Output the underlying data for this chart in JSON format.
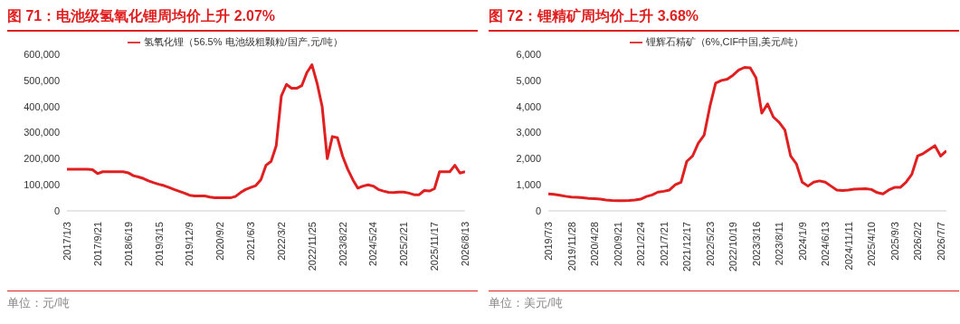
{
  "chart_data": [
    {
      "type": "line",
      "title": "图 71：电池级氢氧化锂周均价上升 2.07%",
      "categories": [
        "2017/1/3",
        null,
        null,
        null,
        null,
        null,
        "2017/9/21",
        null,
        null,
        null,
        null,
        null,
        "2018/6/19",
        null,
        null,
        null,
        null,
        null,
        "2019/3/15",
        null,
        null,
        null,
        null,
        null,
        "2019/12/9",
        null,
        null,
        null,
        null,
        null,
        "2020/9/2",
        null,
        null,
        null,
        null,
        null,
        "2021/6/3",
        null,
        null,
        null,
        null,
        null,
        "2022/3/2",
        null,
        null,
        null,
        null,
        null,
        "2022/11/25",
        null,
        null,
        null,
        null,
        null,
        "2023/8/22",
        null,
        null,
        null,
        null,
        null,
        "2024/5/24",
        null,
        null,
        null,
        null,
        null,
        "2025/2/21",
        null,
        null,
        null,
        null,
        null,
        "2025/11/17",
        null,
        null,
        null,
        null,
        null,
        "2026/8/13"
      ],
      "series": [
        {
          "name": "氢氧化锂（56.5% 电池级粗颗粒/国产,元/吨）",
          "color": "#e02020",
          "values": [
            160000,
            160000,
            160000,
            160000,
            160000,
            158000,
            143000,
            150000,
            150000,
            150000,
            150000,
            150000,
            146000,
            135000,
            130000,
            124000,
            115000,
            108000,
            102000,
            97000,
            90000,
            82000,
            75000,
            68000,
            60000,
            57000,
            57000,
            57000,
            53000,
            50000,
            50000,
            50000,
            50000,
            55000,
            70000,
            82000,
            90000,
            97000,
            120000,
            175000,
            190000,
            250000,
            440000,
            485000,
            470000,
            470000,
            480000,
            530000,
            560000,
            490000,
            400000,
            200000,
            285000,
            280000,
            210000,
            160000,
            120000,
            87000,
            95000,
            100000,
            95000,
            82000,
            76000,
            71000,
            70000,
            72000,
            72000,
            68000,
            62000,
            62000,
            78000,
            76000,
            85000,
            150000,
            150000,
            150000,
            175000,
            145000,
            150000
          ]
        }
      ],
      "ylim": [
        0,
        600000
      ],
      "yticks": [
        0,
        {
          "value": 100000,
          "label": "100,000"
        },
        {
          "value": 200000,
          "label": "200,000"
        },
        {
          "value": 300000,
          "label": "300,000"
        },
        {
          "value": 400000,
          "label": "400,000"
        },
        {
          "value": 500000,
          "label": "500,000"
        },
        {
          "value": 600000,
          "label": "600,000"
        }
      ],
      "grid": false,
      "legend": "top",
      "annotations": [
        "单位：元/吨"
      ]
    },
    {
      "type": "line",
      "title": "图 72：锂精矿周均价上升 3.68%",
      "categories": [
        "2019/7/3",
        null,
        null,
        null,
        "2019/11/28",
        null,
        null,
        null,
        "2020/4/28",
        null,
        null,
        null,
        "2020/9/21",
        null,
        null,
        null,
        "2021/2/24",
        null,
        null,
        null,
        "2021/7/21",
        null,
        null,
        null,
        "2021/12/17",
        null,
        null,
        null,
        "2022/5/23",
        null,
        null,
        null,
        "2022/10/19",
        null,
        null,
        null,
        "2023/3/16",
        null,
        null,
        null,
        "2023/8/11",
        null,
        null,
        null,
        "2024/1/9",
        null,
        null,
        null,
        "2024/6/13",
        null,
        null,
        null,
        "2024/11/11",
        null,
        null,
        null,
        "2025/4/10",
        null,
        null,
        null,
        "2025/9/3",
        null,
        null,
        null,
        "2026/2/2",
        null,
        null,
        null,
        "2026/7/7",
        null
      ],
      "series": [
        {
          "name": "锂辉石精矿（6%,CIF中国,美元/吨）",
          "color": "#e02020",
          "values": [
            650,
            630,
            600,
            560,
            530,
            520,
            500,
            480,
            470,
            450,
            420,
            400,
            390,
            390,
            400,
            420,
            450,
            550,
            610,
            720,
            750,
            800,
            1000,
            1100,
            1900,
            2100,
            2600,
            2900,
            4000,
            4900,
            5000,
            5050,
            5200,
            5400,
            5500,
            5480,
            5100,
            3750,
            4100,
            3600,
            3400,
            3100,
            2100,
            1800,
            1100,
            950,
            1100,
            1150,
            1100,
            950,
            800,
            780,
            800,
            830,
            840,
            850,
            820,
            700,
            650,
            800,
            900,
            900,
            1100,
            1400,
            2100,
            2200,
            2350,
            2500,
            2100,
            2300
          ]
        }
      ],
      "ylim": [
        0,
        6000
      ],
      "yticks": [
        0,
        {
          "value": 1000,
          "label": "1,000"
        },
        {
          "value": 2000,
          "label": "2,000"
        },
        {
          "value": 3000,
          "label": "3,000"
        },
        {
          "value": 4000,
          "label": "4,000"
        },
        {
          "value": 5000,
          "label": "5,000"
        },
        {
          "value": 6000,
          "label": "6,000"
        }
      ],
      "grid": false,
      "legend": "top",
      "annotations": [
        "单位：美元/吨"
      ]
    }
  ]
}
